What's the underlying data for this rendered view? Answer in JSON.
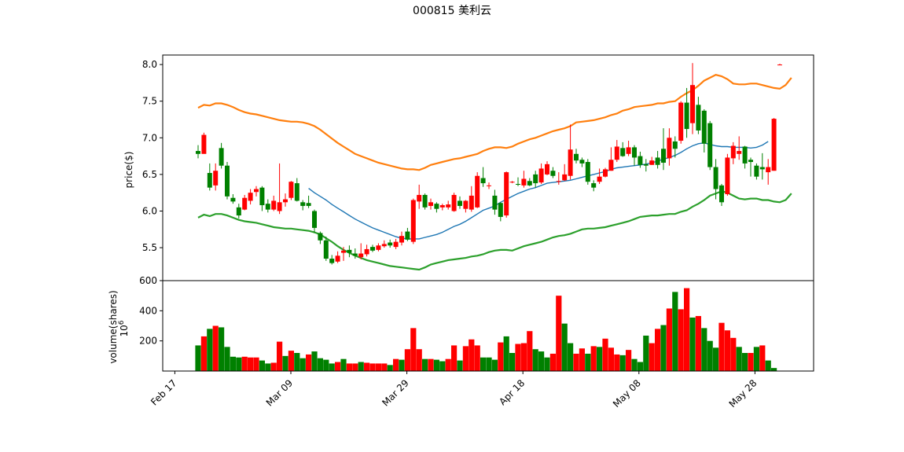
{
  "chart_data": {
    "type": "candlestick+bar",
    "title": "000815   美利云",
    "price_panel": {
      "ylabel": "price($)",
      "yticks": [
        "5.5",
        "6.0",
        "6.5",
        "7.0",
        "7.5",
        "8.0"
      ],
      "ylim": [
        5.05,
        8.13
      ],
      "colors": {
        "up": "#ff0000",
        "down": "#008000",
        "ma": "#1f77b4",
        "upper_band": "#ff7f0e",
        "lower_band": "#2ca02c"
      },
      "ohlc": [
        [
          6.82,
          6.78,
          6.9,
          6.72
        ],
        [
          6.78,
          7.04,
          7.07,
          6.8
        ],
        [
          6.52,
          6.32,
          6.65,
          6.28
        ],
        [
          6.35,
          6.55,
          6.65,
          6.28
        ],
        [
          6.86,
          6.62,
          6.93,
          6.58
        ],
        [
          6.62,
          6.2,
          6.67,
          6.16
        ],
        [
          6.18,
          6.13,
          6.23,
          6.1
        ],
        [
          6.05,
          5.94,
          6.1,
          5.9
        ],
        [
          6.02,
          6.18,
          6.22,
          6.01
        ],
        [
          6.14,
          6.25,
          6.3,
          6.09
        ],
        [
          6.26,
          6.3,
          6.34,
          6.2
        ],
        [
          6.32,
          6.08,
          6.34,
          6.0
        ],
        [
          6.1,
          6.02,
          6.16,
          5.98
        ],
        [
          6.02,
          6.14,
          6.21,
          6.0
        ],
        [
          6.0,
          6.12,
          6.65,
          5.96
        ],
        [
          6.12,
          6.16,
          6.24,
          6.06
        ],
        [
          6.18,
          6.4,
          6.41,
          6.15
        ],
        [
          6.38,
          6.14,
          6.45,
          6.13
        ],
        [
          6.12,
          6.07,
          6.15,
          6.01
        ],
        [
          6.11,
          6.07,
          6.21,
          6.04
        ],
        [
          6.0,
          5.77,
          6.02,
          5.7
        ],
        [
          5.7,
          5.6,
          5.72,
          5.55
        ],
        [
          5.6,
          5.35,
          5.65,
          5.32
        ],
        [
          5.35,
          5.29,
          5.4,
          5.27
        ],
        [
          5.31,
          5.39,
          5.45,
          5.29
        ],
        [
          5.43,
          5.46,
          5.51,
          5.32
        ],
        [
          5.47,
          5.43,
          5.53,
          5.37
        ],
        [
          5.42,
          5.39,
          5.49,
          5.35
        ],
        [
          5.37,
          5.42,
          5.56,
          5.34
        ],
        [
          5.41,
          5.48,
          5.54,
          5.38
        ],
        [
          5.51,
          5.46,
          5.54,
          5.44
        ],
        [
          5.47,
          5.53,
          5.56,
          5.45
        ],
        [
          5.52,
          5.55,
          5.6,
          5.5
        ],
        [
          5.57,
          5.53,
          5.61,
          5.5
        ],
        [
          5.51,
          5.58,
          5.62,
          5.48
        ],
        [
          5.57,
          5.66,
          5.72,
          5.53
        ],
        [
          5.72,
          5.61,
          5.77,
          5.59
        ],
        [
          5.58,
          6.15,
          6.17,
          5.55
        ],
        [
          6.13,
          6.22,
          6.36,
          6.03
        ],
        [
          6.22,
          6.05,
          6.24,
          6.02
        ],
        [
          6.07,
          6.12,
          6.17,
          6.02
        ],
        [
          6.1,
          6.03,
          6.12,
          5.98
        ],
        [
          6.05,
          6.08,
          6.1,
          6.01
        ],
        [
          6.05,
          6.09,
          6.14,
          6.02
        ],
        [
          6.0,
          6.22,
          6.25,
          5.99
        ],
        [
          6.14,
          6.07,
          6.2,
          6.03
        ],
        [
          6.03,
          6.14,
          6.15,
          5.98
        ],
        [
          6.02,
          6.21,
          6.34,
          5.99
        ],
        [
          6.05,
          6.48,
          6.53,
          6.04
        ],
        [
          6.45,
          6.38,
          6.6,
          6.33
        ],
        [
          6.35,
          6.35,
          6.39,
          6.3
        ],
        [
          6.21,
          6.02,
          6.29,
          5.95
        ],
        [
          6.11,
          5.92,
          6.12,
          5.86
        ],
        [
          5.94,
          6.53,
          6.54,
          5.91
        ],
        [
          6.4,
          6.4,
          6.41,
          6.38
        ],
        [
          6.37,
          6.36,
          6.46,
          6.34
        ],
        [
          6.35,
          6.44,
          6.55,
          6.32
        ],
        [
          6.41,
          6.35,
          6.45,
          6.34
        ],
        [
          6.5,
          6.38,
          6.55,
          6.32
        ],
        [
          6.39,
          6.58,
          6.65,
          6.37
        ],
        [
          6.5,
          6.64,
          6.68,
          6.49
        ],
        [
          6.55,
          6.48,
          6.6,
          6.45
        ],
        [
          6.4,
          6.41,
          6.53,
          6.36
        ],
        [
          6.42,
          6.5,
          6.64,
          6.41
        ],
        [
          6.48,
          6.84,
          7.18,
          6.43
        ],
        [
          6.78,
          6.69,
          6.85,
          6.65
        ],
        [
          6.7,
          6.65,
          6.73,
          6.6
        ],
        [
          6.67,
          6.4,
          6.71,
          6.36
        ],
        [
          6.38,
          6.32,
          6.42,
          6.27
        ],
        [
          6.4,
          6.47,
          6.58,
          6.37
        ],
        [
          6.47,
          6.57,
          6.59,
          6.46
        ],
        [
          6.55,
          6.7,
          6.87,
          6.55
        ],
        [
          6.7,
          6.88,
          6.97,
          6.67
        ],
        [
          6.86,
          6.75,
          6.94,
          6.74
        ],
        [
          6.78,
          6.87,
          6.96,
          6.75
        ],
        [
          6.87,
          6.73,
          6.9,
          6.62
        ],
        [
          6.75,
          6.63,
          6.81,
          6.59
        ],
        [
          6.64,
          6.62,
          6.71,
          6.54
        ],
        [
          6.63,
          6.69,
          6.74,
          6.63
        ],
        [
          6.73,
          6.63,
          6.82,
          6.58
        ],
        [
          6.85,
          6.66,
          7.13,
          6.56
        ],
        [
          6.72,
          7.0,
          7.13,
          6.62
        ],
        [
          6.95,
          6.85,
          7.02,
          6.73
        ],
        [
          6.96,
          7.48,
          7.5,
          6.92
        ],
        [
          7.48,
          7.12,
          7.68,
          7.0
        ],
        [
          7.2,
          7.72,
          8.02,
          7.05
        ],
        [
          7.45,
          7.1,
          7.56,
          7.05
        ],
        [
          7.37,
          6.92,
          7.39,
          6.8
        ],
        [
          7.2,
          6.6,
          7.23,
          6.56
        ],
        [
          6.6,
          6.3,
          6.71,
          6.16
        ],
        [
          6.35,
          6.12,
          6.37,
          6.07
        ],
        [
          6.23,
          6.73,
          6.78,
          6.21
        ],
        [
          6.72,
          6.89,
          6.94,
          6.64
        ],
        [
          6.78,
          6.82,
          7.02,
          6.7
        ],
        [
          6.88,
          6.65,
          6.89,
          6.58
        ],
        [
          6.7,
          6.67,
          6.73,
          6.47
        ],
        [
          6.62,
          6.47,
          6.65,
          6.43
        ],
        [
          6.6,
          6.57,
          6.79,
          6.43
        ],
        [
          6.53,
          6.6,
          6.71,
          6.36
        ],
        [
          6.55,
          7.26,
          7.27,
          6.55
        ],
        [
          8.0,
          8.0,
          8.01,
          7.99
        ]
      ],
      "ma_start_index": 19,
      "ma": [
        6.31,
        6.25,
        6.2,
        6.15,
        6.09,
        6.04,
        5.99,
        5.94,
        5.89,
        5.85,
        5.81,
        5.77,
        5.74,
        5.71,
        5.68,
        5.65,
        5.63,
        5.62,
        5.62,
        5.62,
        5.64,
        5.66,
        5.68,
        5.71,
        5.75,
        5.79,
        5.82,
        5.86,
        5.91,
        5.96,
        6.01,
        6.04,
        6.07,
        6.12,
        6.16,
        6.2,
        6.24,
        6.27,
        6.3,
        6.32,
        6.35,
        6.38,
        6.39,
        6.4,
        6.41,
        6.42,
        6.44,
        6.46,
        6.48,
        6.5,
        6.52,
        6.54,
        6.57,
        6.59,
        6.6,
        6.61,
        6.62,
        6.63,
        6.64,
        6.66,
        6.68,
        6.71,
        6.73,
        6.76,
        6.8,
        6.85,
        6.89,
        6.92,
        6.93,
        6.91,
        6.89,
        6.88,
        6.88,
        6.87,
        6.87,
        6.87,
        6.86,
        6.87,
        6.9,
        6.95
      ],
      "upper_band": [
        7.41,
        7.45,
        7.44,
        7.47,
        7.47,
        7.45,
        7.42,
        7.38,
        7.35,
        7.33,
        7.32,
        7.3,
        7.28,
        7.26,
        7.24,
        7.23,
        7.22,
        7.22,
        7.21,
        7.19,
        7.16,
        7.11,
        7.05,
        6.99,
        6.93,
        6.88,
        6.83,
        6.78,
        6.75,
        6.72,
        6.69,
        6.66,
        6.64,
        6.62,
        6.6,
        6.58,
        6.57,
        6.57,
        6.56,
        6.59,
        6.63,
        6.65,
        6.67,
        6.69,
        6.71,
        6.72,
        6.74,
        6.76,
        6.78,
        6.82,
        6.85,
        6.87,
        6.87,
        6.86,
        6.88,
        6.92,
        6.95,
        6.98,
        7.0,
        7.03,
        7.06,
        7.09,
        7.11,
        7.13,
        7.16,
        7.21,
        7.22,
        7.23,
        7.24,
        7.26,
        7.28,
        7.31,
        7.33,
        7.37,
        7.39,
        7.42,
        7.43,
        7.44,
        7.45,
        7.47,
        7.47,
        7.49,
        7.5,
        7.56,
        7.61,
        7.65,
        7.71,
        7.78,
        7.82,
        7.86,
        7.84,
        7.8,
        7.74,
        7.73,
        7.73,
        7.74,
        7.74,
        7.72,
        7.7,
        7.68,
        7.67,
        7.72,
        7.82
      ],
      "lower_band": [
        5.91,
        5.95,
        5.93,
        5.96,
        5.96,
        5.94,
        5.91,
        5.88,
        5.86,
        5.85,
        5.84,
        5.82,
        5.8,
        5.78,
        5.77,
        5.76,
        5.76,
        5.75,
        5.74,
        5.73,
        5.71,
        5.68,
        5.63,
        5.58,
        5.52,
        5.47,
        5.43,
        5.39,
        5.36,
        5.33,
        5.31,
        5.29,
        5.27,
        5.25,
        5.24,
        5.23,
        5.22,
        5.21,
        5.2,
        5.23,
        5.27,
        5.29,
        5.31,
        5.33,
        5.34,
        5.35,
        5.36,
        5.38,
        5.39,
        5.41,
        5.44,
        5.46,
        5.47,
        5.47,
        5.46,
        5.49,
        5.52,
        5.54,
        5.56,
        5.58,
        5.61,
        5.64,
        5.66,
        5.67,
        5.69,
        5.72,
        5.75,
        5.76,
        5.76,
        5.77,
        5.78,
        5.8,
        5.82,
        5.84,
        5.86,
        5.89,
        5.92,
        5.93,
        5.94,
        5.94,
        5.95,
        5.96,
        5.96,
        5.99,
        6.01,
        6.06,
        6.1,
        6.15,
        6.21,
        6.24,
        6.27,
        6.25,
        6.21,
        6.17,
        6.16,
        6.17,
        6.17,
        6.15,
        6.15,
        6.13,
        6.12,
        6.15,
        6.24
      ]
    },
    "volume_panel": {
      "ylabel": "volume(shares)",
      "offset_label": "10^6",
      "yticks": [
        "200",
        "400",
        "600"
      ],
      "ylim": [
        0,
        600
      ],
      "bars": [
        [
          170,
          "g"
        ],
        [
          230,
          "r"
        ],
        [
          280,
          "g"
        ],
        [
          300,
          "r"
        ],
        [
          290,
          "g"
        ],
        [
          160,
          "g"
        ],
        [
          95,
          "g"
        ],
        [
          90,
          "g"
        ],
        [
          95,
          "r"
        ],
        [
          90,
          "r"
        ],
        [
          90,
          "r"
        ],
        [
          70,
          "g"
        ],
        [
          50,
          "g"
        ],
        [
          55,
          "r"
        ],
        [
          195,
          "r"
        ],
        [
          100,
          "g"
        ],
        [
          135,
          "r"
        ],
        [
          120,
          "g"
        ],
        [
          85,
          "g"
        ],
        [
          110,
          "r"
        ],
        [
          130,
          "g"
        ],
        [
          85,
          "g"
        ],
        [
          75,
          "g"
        ],
        [
          50,
          "g"
        ],
        [
          60,
          "r"
        ],
        [
          80,
          "g"
        ],
        [
          50,
          "r"
        ],
        [
          50,
          "r"
        ],
        [
          60,
          "g"
        ],
        [
          55,
          "r"
        ],
        [
          50,
          "r"
        ],
        [
          50,
          "r"
        ],
        [
          50,
          "r"
        ],
        [
          40,
          "g"
        ],
        [
          80,
          "r"
        ],
        [
          75,
          "g"
        ],
        [
          145,
          "r"
        ],
        [
          285,
          "r"
        ],
        [
          145,
          "r"
        ],
        [
          80,
          "g"
        ],
        [
          80,
          "r"
        ],
        [
          75,
          "g"
        ],
        [
          65,
          "g"
        ],
        [
          80,
          "r"
        ],
        [
          170,
          "r"
        ],
        [
          70,
          "g"
        ],
        [
          165,
          "r"
        ],
        [
          210,
          "r"
        ],
        [
          170,
          "r"
        ],
        [
          90,
          "g"
        ],
        [
          90,
          "g"
        ],
        [
          75,
          "g"
        ],
        [
          190,
          "r"
        ],
        [
          230,
          "g"
        ],
        [
          120,
          "g"
        ],
        [
          180,
          "r"
        ],
        [
          185,
          "r"
        ],
        [
          265,
          "r"
        ],
        [
          145,
          "g"
        ],
        [
          130,
          "g"
        ],
        [
          90,
          "g"
        ],
        [
          115,
          "r"
        ],
        [
          500,
          "r"
        ],
        [
          315,
          "g"
        ],
        [
          185,
          "g"
        ],
        [
          115,
          "r"
        ],
        [
          150,
          "r"
        ],
        [
          115,
          "g"
        ],
        [
          165,
          "r"
        ],
        [
          160,
          "g"
        ],
        [
          215,
          "r"
        ],
        [
          155,
          "r"
        ],
        [
          110,
          "r"
        ],
        [
          105,
          "g"
        ],
        [
          140,
          "r"
        ],
        [
          80,
          "g"
        ],
        [
          60,
          "g"
        ],
        [
          235,
          "g"
        ],
        [
          185,
          "r"
        ],
        [
          280,
          "r"
        ],
        [
          305,
          "g"
        ],
        [
          415,
          "r"
        ],
        [
          525,
          "g"
        ],
        [
          410,
          "r"
        ],
        [
          550,
          "r"
        ],
        [
          355,
          "g"
        ],
        [
          365,
          "r"
        ],
        [
          285,
          "g"
        ],
        [
          200,
          "g"
        ],
        [
          155,
          "g"
        ],
        [
          320,
          "r"
        ],
        [
          270,
          "r"
        ],
        [
          220,
          "r"
        ],
        [
          160,
          "g"
        ],
        [
          120,
          "g"
        ],
        [
          120,
          "r"
        ],
        [
          160,
          "g"
        ],
        [
          170,
          "r"
        ],
        [
          70,
          "g"
        ],
        [
          20,
          "g"
        ]
      ]
    },
    "x_axis": {
      "tick_labels": [
        "Feb 17",
        "Mar 09",
        "Mar 29",
        "Apr 18",
        "May 08",
        "May 28"
      ]
    }
  }
}
